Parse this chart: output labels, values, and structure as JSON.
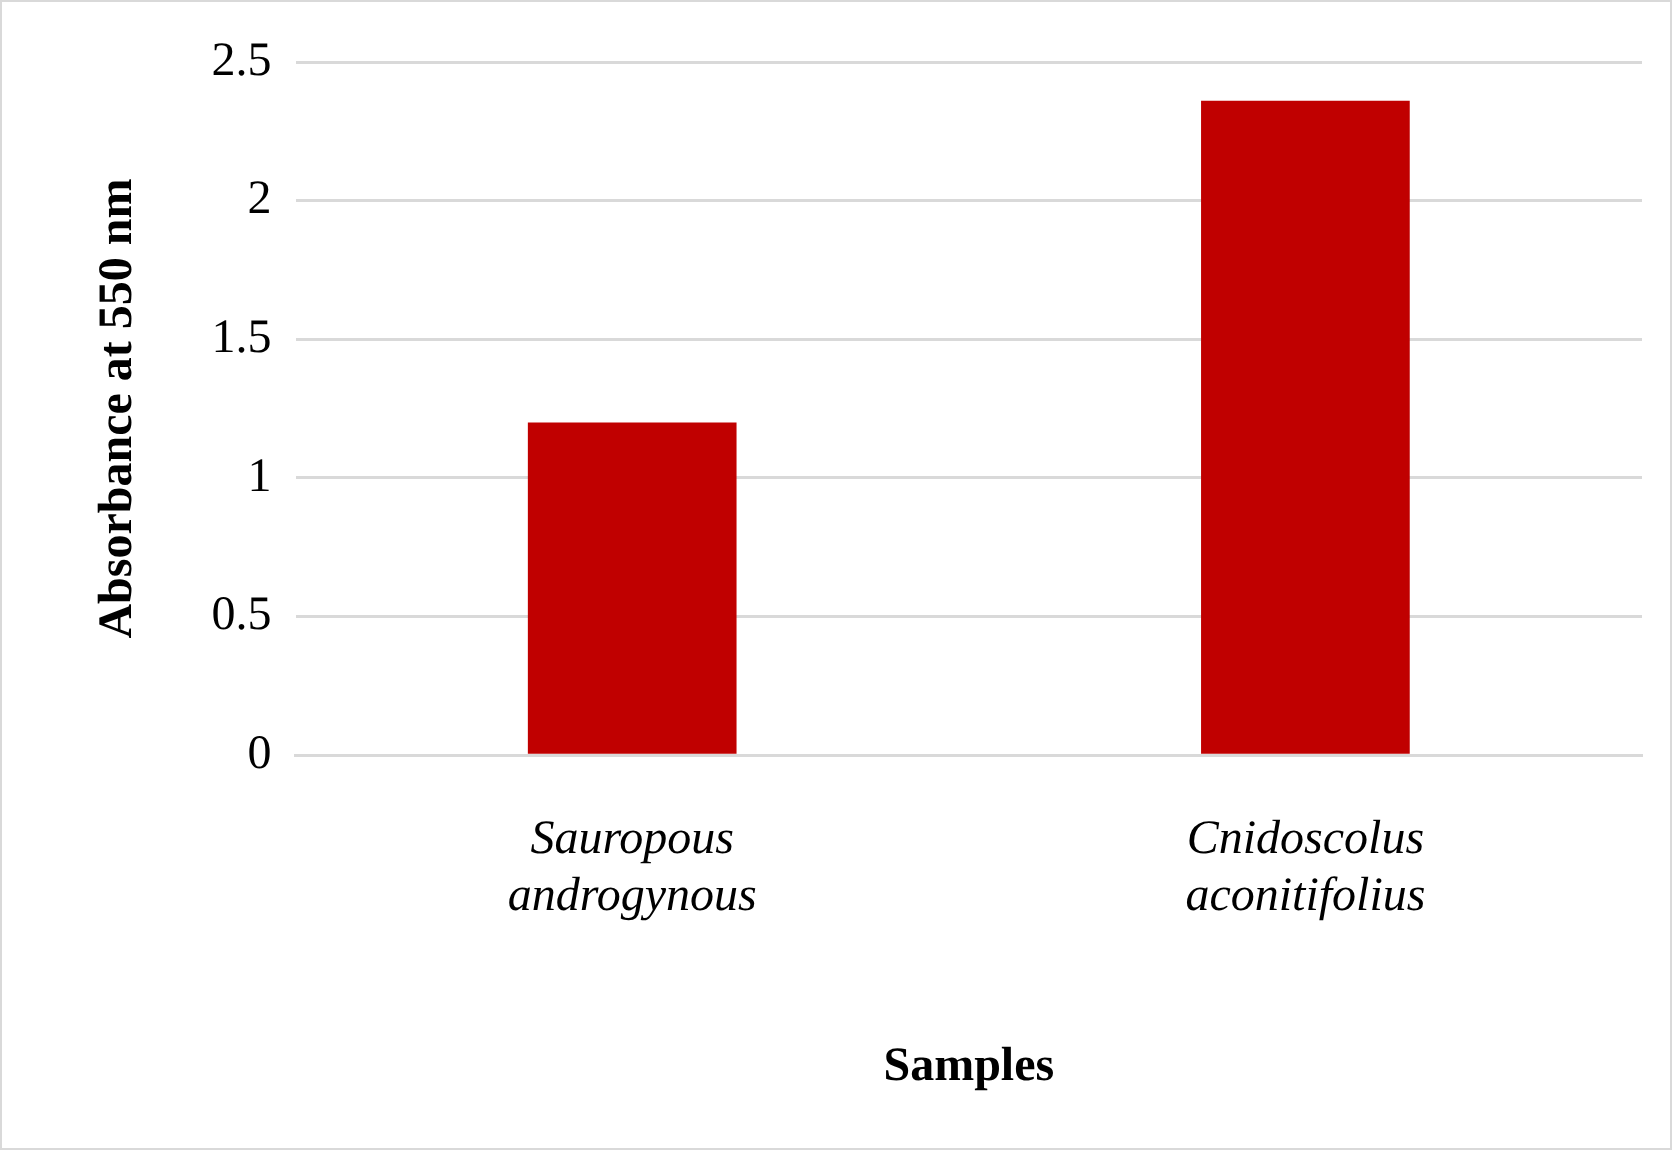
{
  "chart_data": {
    "type": "bar",
    "categories": [
      "Sauropous androgynous",
      "Cnidoscolus aconitifolius"
    ],
    "values": [
      1.2,
      2.36
    ],
    "color": "#c00000",
    "xlabel": "Samples",
    "ylabel": "Absorbance at 550 nm",
    "ylim": [
      0,
      2.5
    ],
    "yticks": [
      0,
      0.5,
      1,
      1.5,
      2,
      2.5
    ],
    "grid": "y"
  }
}
